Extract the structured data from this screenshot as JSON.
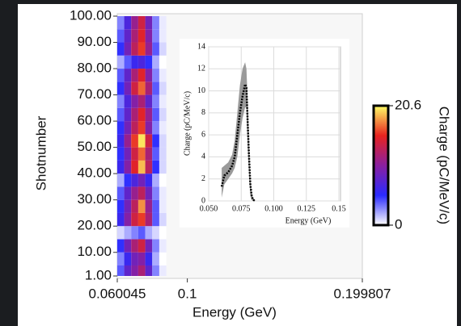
{
  "chart_data": {
    "type": "heatmap",
    "xlabel": "Energy (GeV)",
    "ylabel": "Shotnumber",
    "xlim": [
      0.060045,
      0.199807
    ],
    "xticks": [
      0.060045,
      0.1,
      0.199807
    ],
    "ylim": [
      1,
      100
    ],
    "yticks": [
      {
        "value": 1,
        "label": "1.00"
      },
      {
        "value": 10,
        "label": "10.00"
      },
      {
        "value": 20,
        "label": "20.00"
      },
      {
        "value": 30,
        "label": "30.00"
      },
      {
        "value": 40,
        "label": "40.00"
      },
      {
        "value": 50,
        "label": "50.00"
      },
      {
        "value": 60,
        "label": "60.00"
      },
      {
        "value": 70,
        "label": "70.00"
      },
      {
        "value": 80,
        "label": "80.00"
      },
      {
        "value": 90,
        "label": "90.00"
      },
      {
        "value": 100,
        "label": "100.00"
      }
    ],
    "x_edges": [
      0.06,
      0.064,
      0.068,
      0.072,
      0.076,
      0.08,
      0.084,
      0.088
    ],
    "y_edges": [
      1,
      5,
      10,
      15,
      20,
      25,
      30,
      35,
      40,
      45,
      50,
      55,
      60,
      65,
      70,
      75,
      80,
      85,
      90,
      95,
      100
    ],
    "z": [
      [
        4,
        8,
        10,
        12,
        8,
        3,
        0.5
      ],
      [
        3,
        6,
        9,
        10,
        6,
        2,
        0
      ],
      [
        5,
        9,
        12,
        14,
        9,
        3,
        0.5
      ],
      [
        1,
        2,
        3,
        4,
        2,
        1,
        0
      ],
      [
        6,
        10,
        14,
        16,
        12,
        4,
        1
      ],
      [
        5,
        9,
        13,
        18,
        11,
        4,
        0.5
      ],
      [
        4,
        8,
        11,
        13,
        9,
        3,
        0.5
      ],
      [
        2,
        5,
        7,
        9,
        6,
        2,
        0
      ],
      [
        6,
        10,
        15,
        19,
        13,
        5,
        1
      ],
      [
        5,
        9,
        14,
        17,
        12,
        4,
        1
      ],
      [
        6,
        11,
        16,
        20,
        14,
        5,
        1
      ],
      [
        5,
        9,
        13,
        16,
        10,
        3,
        0.5
      ],
      [
        4,
        8,
        12,
        15,
        11,
        4,
        1
      ],
      [
        3,
        7,
        10,
        12,
        8,
        3,
        0.5
      ],
      [
        5,
        9,
        14,
        17,
        12,
        4,
        1
      ],
      [
        4,
        8,
        12,
        15,
        10,
        3,
        0.5
      ],
      [
        2,
        4,
        6,
        7,
        5,
        2,
        0
      ],
      [
        5,
        9,
        13,
        16,
        11,
        4,
        1
      ],
      [
        4,
        8,
        12,
        15,
        10,
        3,
        0.5
      ],
      [
        3,
        7,
        11,
        14,
        9,
        3,
        0.5
      ]
    ],
    "colormap": [
      "#ffffff",
      "#2a2aff",
      "#8a1fa0",
      "#e8231f",
      "#ffff66"
    ],
    "colorbar": {
      "label": "Charge (pC/MeV/c)",
      "clim": [
        0,
        20.6
      ],
      "ticks": [
        0,
        20.6
      ]
    },
    "inset": {
      "type": "line",
      "xlabel": "Energy (GeV)",
      "ylabel": "Charge (pC/MeV/c)",
      "xlim": [
        0.05,
        0.15
      ],
      "ylim": [
        0,
        14
      ],
      "xticks": [
        {
          "value": 0.05,
          "label": "0.050"
        },
        {
          "value": 0.075,
          "label": "0.075"
        },
        {
          "value": 0.1,
          "label": "0.100"
        },
        {
          "value": 0.125,
          "label": "0.125"
        },
        {
          "value": 0.15,
          "label": "0.15"
        }
      ],
      "yticks": [
        0,
        2,
        4,
        6,
        8,
        10,
        12,
        14
      ],
      "grid": true,
      "color": "#000000",
      "band_color": "#9a9a9a",
      "x": [
        0.06,
        0.062,
        0.065,
        0.068,
        0.07,
        0.072,
        0.074,
        0.076,
        0.078,
        0.079,
        0.08,
        0.081,
        0.082,
        0.083,
        0.084,
        0.086
      ],
      "values": [
        1.3,
        2.3,
        2.6,
        3.2,
        4.0,
        6.0,
        8.0,
        9.5,
        10.6,
        10.3,
        7.0,
        4.0,
        1.5,
        0.5,
        0.1,
        0
      ],
      "lower": [
        0.3,
        1.5,
        2.0,
        2.5,
        3,
        4,
        6,
        7.5,
        8.5,
        8.5,
        5,
        2.5,
        0.5,
        0.1,
        0,
        0
      ],
      "upper": [
        3.0,
        3.2,
        3.5,
        4.2,
        5.5,
        8,
        10.5,
        12,
        12.6,
        12,
        9,
        5,
        2,
        0.8,
        0.3,
        0
      ]
    }
  }
}
